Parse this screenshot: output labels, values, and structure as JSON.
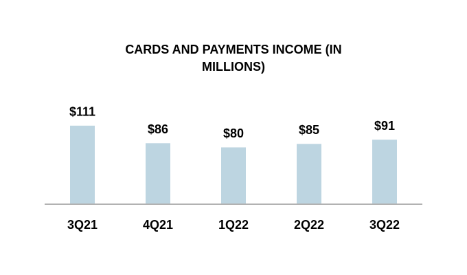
{
  "chart_data": {
    "type": "bar",
    "title": "CARDS AND PAYMENTS INCOME (IN MILLIONS)",
    "categories": [
      "3Q21",
      "4Q21",
      "1Q22",
      "2Q22",
      "3Q22"
    ],
    "values": [
      111,
      86,
      80,
      85,
      91
    ],
    "value_labels": [
      "$111",
      "$86",
      "$80",
      "$85",
      "$91"
    ],
    "color": "#bdd5e1"
  }
}
